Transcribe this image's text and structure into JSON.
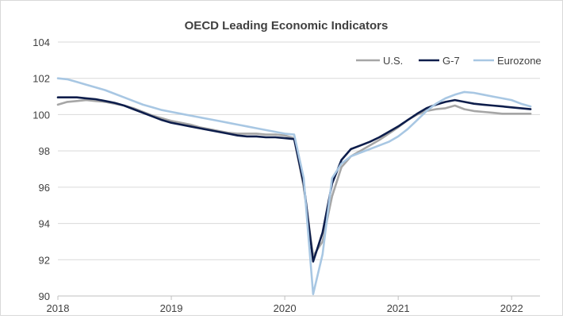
{
  "chart_data": {
    "type": "line",
    "title": "OECD Leading Economic Indicators",
    "xlabel": "",
    "ylabel": "",
    "ylim": [
      90,
      104
    ],
    "yticks": [
      90,
      92,
      94,
      96,
      98,
      100,
      102,
      104
    ],
    "xlim": [
      2018.0,
      2022.25
    ],
    "xticks": [
      2018,
      2019,
      2020,
      2021,
      2022
    ],
    "xtick_labels": [
      "2018",
      "2019",
      "2020",
      "2021",
      "2022"
    ],
    "grid": "horizontal",
    "legend_position": "top-right",
    "series": [
      {
        "name": "U.S.",
        "color": "#a6a6a6",
        "x": [
          2018.0,
          2018.083,
          2018.167,
          2018.25,
          2018.333,
          2018.417,
          2018.5,
          2018.583,
          2018.667,
          2018.75,
          2018.833,
          2018.917,
          2019.0,
          2019.083,
          2019.167,
          2019.25,
          2019.333,
          2019.417,
          2019.5,
          2019.583,
          2019.667,
          2019.75,
          2019.833,
          2019.917,
          2020.0,
          2020.083,
          2020.167,
          2020.25,
          2020.333,
          2020.417,
          2020.5,
          2020.583,
          2020.667,
          2020.75,
          2020.833,
          2020.917,
          2021.0,
          2021.083,
          2021.167,
          2021.25,
          2021.333,
          2021.417,
          2021.5,
          2021.583,
          2021.667,
          2021.75,
          2021.833,
          2021.917,
          2022.0,
          2022.083,
          2022.167
        ],
        "values": [
          100.55,
          100.7,
          100.75,
          100.8,
          100.75,
          100.7,
          100.6,
          100.5,
          100.35,
          100.15,
          99.95,
          99.8,
          99.65,
          99.55,
          99.45,
          99.3,
          99.2,
          99.1,
          99.0,
          98.95,
          98.95,
          98.95,
          98.9,
          98.9,
          98.85,
          98.7,
          96.0,
          92.2,
          93.0,
          95.5,
          97.1,
          97.7,
          98.0,
          98.3,
          98.6,
          98.95,
          99.3,
          99.7,
          100.0,
          100.2,
          100.3,
          100.35,
          100.5,
          100.3,
          100.2,
          100.15,
          100.1,
          100.05,
          100.05,
          100.05,
          100.05
        ]
      },
      {
        "name": "G-7",
        "color": "#0d1d4b",
        "x": [
          2018.0,
          2018.083,
          2018.167,
          2018.25,
          2018.333,
          2018.417,
          2018.5,
          2018.583,
          2018.667,
          2018.75,
          2018.833,
          2018.917,
          2019.0,
          2019.083,
          2019.167,
          2019.25,
          2019.333,
          2019.417,
          2019.5,
          2019.583,
          2019.667,
          2019.75,
          2019.833,
          2019.917,
          2020.0,
          2020.083,
          2020.167,
          2020.25,
          2020.333,
          2020.417,
          2020.5,
          2020.583,
          2020.667,
          2020.75,
          2020.833,
          2020.917,
          2021.0,
          2021.083,
          2021.167,
          2021.25,
          2021.333,
          2021.417,
          2021.5,
          2021.583,
          2021.667,
          2021.75,
          2021.833,
          2021.917,
          2022.0,
          2022.083,
          2022.167
        ],
        "values": [
          100.95,
          100.95,
          100.95,
          100.9,
          100.85,
          100.75,
          100.65,
          100.5,
          100.3,
          100.1,
          99.9,
          99.7,
          99.55,
          99.45,
          99.35,
          99.25,
          99.15,
          99.05,
          98.95,
          98.85,
          98.8,
          98.8,
          98.75,
          98.75,
          98.7,
          98.65,
          96.2,
          91.9,
          93.5,
          96.2,
          97.5,
          98.1,
          98.3,
          98.5,
          98.75,
          99.05,
          99.35,
          99.7,
          100.05,
          100.35,
          100.55,
          100.7,
          100.8,
          100.7,
          100.6,
          100.55,
          100.5,
          100.45,
          100.4,
          100.35,
          100.3
        ]
      },
      {
        "name": "Eurozone",
        "color": "#a8c7e3",
        "x": [
          2018.0,
          2018.083,
          2018.167,
          2018.25,
          2018.333,
          2018.417,
          2018.5,
          2018.583,
          2018.667,
          2018.75,
          2018.833,
          2018.917,
          2019.0,
          2019.083,
          2019.167,
          2019.25,
          2019.333,
          2019.417,
          2019.5,
          2019.583,
          2019.667,
          2019.75,
          2019.833,
          2019.917,
          2020.0,
          2020.083,
          2020.167,
          2020.25,
          2020.333,
          2020.417,
          2020.5,
          2020.583,
          2020.667,
          2020.75,
          2020.833,
          2020.917,
          2021.0,
          2021.083,
          2021.167,
          2021.25,
          2021.333,
          2021.417,
          2021.5,
          2021.583,
          2021.667,
          2021.75,
          2021.833,
          2021.917,
          2022.0,
          2022.083,
          2022.167
        ],
        "values": [
          102.0,
          101.95,
          101.8,
          101.65,
          101.5,
          101.35,
          101.15,
          100.95,
          100.75,
          100.55,
          100.4,
          100.25,
          100.15,
          100.05,
          99.95,
          99.85,
          99.75,
          99.65,
          99.55,
          99.45,
          99.35,
          99.25,
          99.15,
          99.05,
          98.95,
          98.9,
          96.5,
          90.1,
          92.3,
          96.5,
          97.3,
          97.7,
          97.9,
          98.1,
          98.3,
          98.5,
          98.8,
          99.2,
          99.7,
          100.2,
          100.6,
          100.9,
          101.1,
          101.25,
          101.2,
          101.1,
          101.0,
          100.9,
          100.8,
          100.6,
          100.45
        ]
      }
    ]
  }
}
